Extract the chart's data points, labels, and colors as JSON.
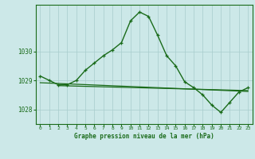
{
  "title": "Graphe pression niveau de la mer (hPa)",
  "bg_color": "#cce8e8",
  "line_color": "#1a6b1a",
  "grid_color": "#a8cccc",
  "xlim": [
    -0.5,
    23.5
  ],
  "ylim": [
    1027.5,
    1031.6
  ],
  "yticks": [
    1028,
    1029,
    1030
  ],
  "xticks": [
    0,
    1,
    2,
    3,
    4,
    5,
    6,
    7,
    8,
    9,
    10,
    11,
    12,
    13,
    14,
    15,
    16,
    17,
    18,
    19,
    20,
    21,
    22,
    23
  ],
  "curve1_x": [
    0,
    1,
    2,
    3,
    4,
    5,
    6,
    7,
    8,
    9,
    10,
    11,
    12,
    13,
    14,
    15,
    16,
    17,
    18,
    19,
    20,
    21,
    22,
    23
  ],
  "curve1_y": [
    1029.15,
    1029.0,
    1028.85,
    1028.85,
    1029.0,
    1029.35,
    1029.6,
    1029.85,
    1030.05,
    1030.3,
    1031.05,
    1031.35,
    1031.2,
    1030.55,
    1029.85,
    1029.5,
    1028.95,
    1028.75,
    1028.5,
    1028.15,
    1027.9,
    1028.25,
    1028.6,
    1028.75
  ],
  "trend_x": [
    0,
    23
  ],
  "trend_y": [
    1028.92,
    1028.62
  ],
  "trend2_x": [
    2,
    23
  ],
  "trend2_y": [
    1028.82,
    1028.65
  ]
}
